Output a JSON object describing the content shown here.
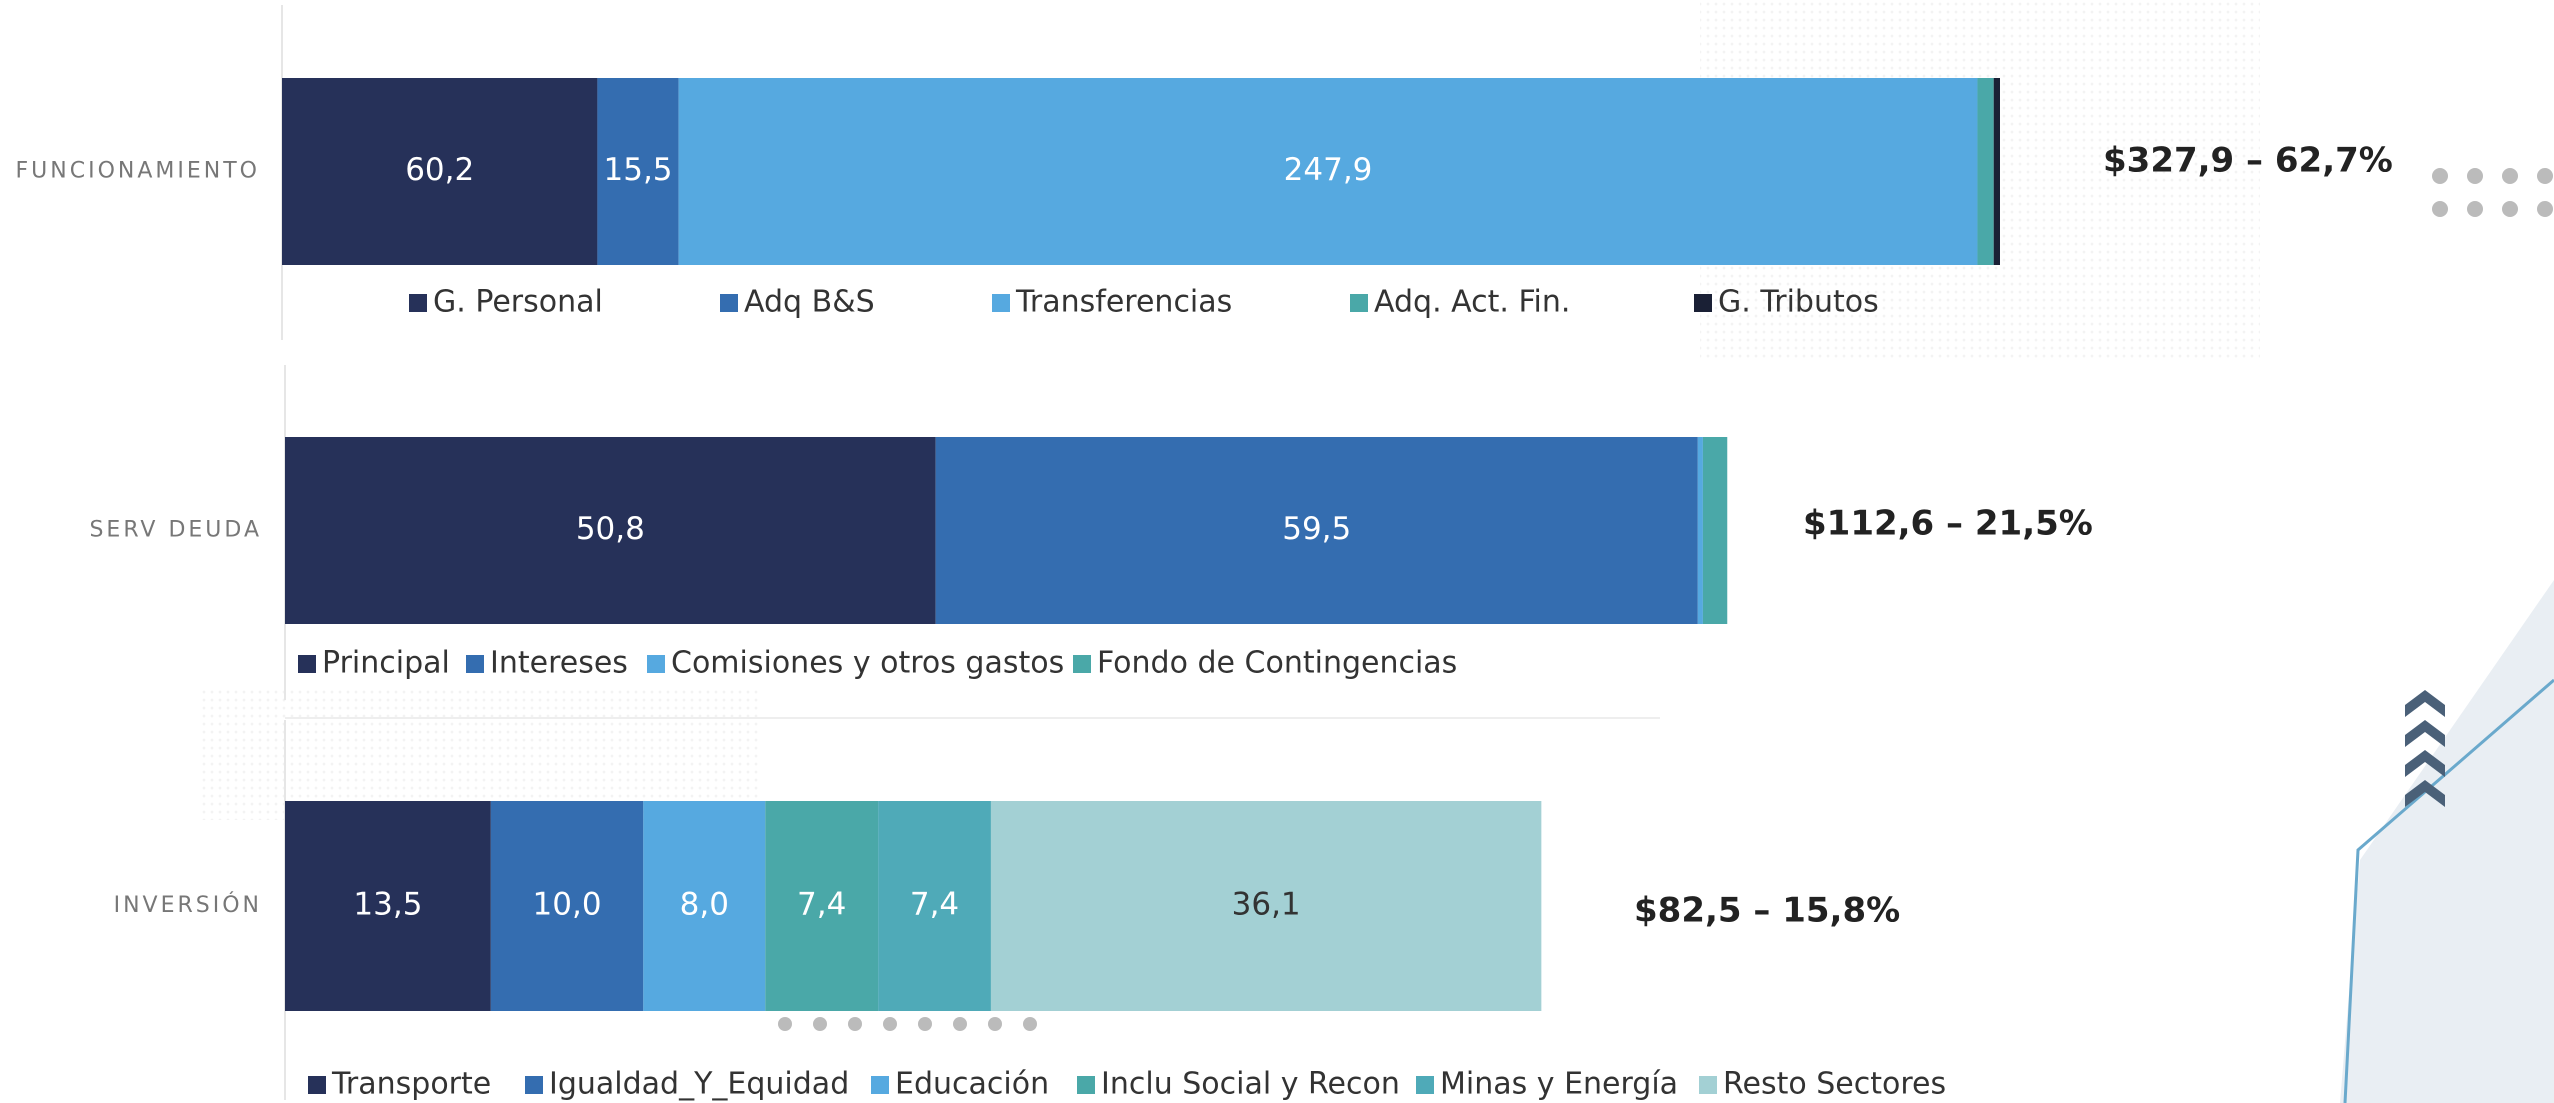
{
  "chart_data": [
    {
      "type": "bar",
      "orientation": "horizontal",
      "categories": [
        "FUNCIONAMIENTO"
      ],
      "xlim": [
        0,
        330
      ],
      "annotation": "$327,9 – 62,7%",
      "series": [
        {
          "name": "G. Personal",
          "color": "#263159",
          "values": [
            60.2
          ],
          "value_labels": [
            "60,2"
          ]
        },
        {
          "name": "Adq B&S",
          "color": "#346DB0",
          "values": [
            15.5
          ],
          "value_labels": [
            "15,5"
          ]
        },
        {
          "name": "Transferencias",
          "color": "#56A9E0",
          "values": [
            247.9
          ],
          "value_labels": [
            "247,9"
          ]
        },
        {
          "name": "Adq. Act. Fin.",
          "color": "#4AA8A8",
          "values": [
            3.1
          ]
        },
        {
          "name": "G. Tributos",
          "color": "#1A2035",
          "values": [
            1.2
          ]
        }
      ]
    },
    {
      "type": "bar",
      "orientation": "horizontal",
      "categories": [
        "SERV DEUDA"
      ],
      "xlim": [
        0,
        115
      ],
      "annotation": "$112,6 – 21,5%",
      "series": [
        {
          "name": "Principal",
          "color": "#263159",
          "values": [
            50.8
          ],
          "value_labels": [
            "50,8"
          ]
        },
        {
          "name": "Intereses",
          "color": "#346DB0",
          "values": [
            59.5
          ],
          "value_labels": [
            "59,5"
          ]
        },
        {
          "name": "Comisiones y otros gastos",
          "color": "#56A9E0",
          "values": [
            0.4
          ]
        },
        {
          "name": "Fondo de Contingencias",
          "color": "#4AA8A8",
          "values": [
            1.9
          ]
        }
      ]
    },
    {
      "type": "bar",
      "orientation": "horizontal",
      "categories": [
        "INVERSIÓN"
      ],
      "xlim": [
        0,
        85
      ],
      "annotation": "$82,5 – 15,8%",
      "series": [
        {
          "name": "Transporte",
          "color": "#263159",
          "values": [
            13.5
          ],
          "value_labels": [
            "13,5"
          ]
        },
        {
          "name": "Igualdad_Y_Equidad",
          "color": "#346DB0",
          "values": [
            10.0
          ],
          "value_labels": [
            "10,0"
          ]
        },
        {
          "name": "Educación",
          "color": "#56A9E0",
          "values": [
            8.0
          ],
          "value_labels": [
            "8,0"
          ]
        },
        {
          "name": "Inclu Social y Recon",
          "color": "#4AA8A8",
          "values": [
            7.4
          ],
          "value_labels": [
            "7,4"
          ]
        },
        {
          "name": "Minas y Energía",
          "color": "#4FAAB8",
          "values": [
            7.4
          ],
          "value_labels": [
            "7,4"
          ]
        },
        {
          "name": "Resto Sectores",
          "color": "#A3D0D4",
          "values": [
            36.1
          ],
          "value_labels": [
            "36,1"
          ]
        }
      ]
    }
  ]
}
